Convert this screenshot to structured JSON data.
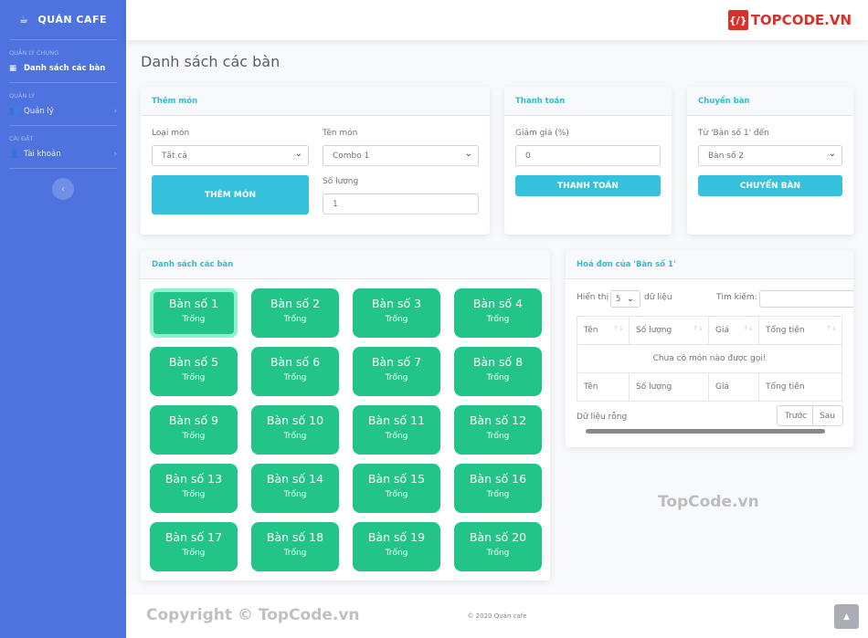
{
  "sidebar": {
    "brand": "QUÁN CAFE",
    "sections": [
      {
        "heading": "QUẢN LÝ CHUNG",
        "item": "Danh sách các bàn"
      },
      {
        "heading": "QUẢN LÝ",
        "item": "Quản lý"
      },
      {
        "heading": "CÀI ĐẶT",
        "item": "Tài khoản"
      }
    ]
  },
  "topbar": {
    "logo": "TOPCODE.VN"
  },
  "page_title": "Danh sách các bàn",
  "add_item": {
    "title": "Thêm món",
    "type_label": "Loại món",
    "type_value": "Tất cả",
    "name_label": "Tên món",
    "name_value": "Combo 1",
    "qty_label": "Số lượng",
    "qty_value": "1",
    "button": "THÊM MÓN"
  },
  "payment": {
    "title": "Thanh toán",
    "discount_label": "Giảm giá (%)",
    "discount_value": "0",
    "button": "THANH TOÁN"
  },
  "transfer": {
    "title": "Chuyển bàn",
    "label": "Từ 'Bàn số 1' đến",
    "value": "Bàn số 2",
    "button": "CHUYỂN BÀN"
  },
  "tables": {
    "title": "Danh sách các bàn",
    "selected": "Bàn số 1",
    "items": [
      {
        "name": "Bàn số 1",
        "status": "Trống"
      },
      {
        "name": "Bàn số 2",
        "status": "Trống"
      },
      {
        "name": "Bàn số 3",
        "status": "Trống"
      },
      {
        "name": "Bàn số 4",
        "status": "Trống"
      },
      {
        "name": "Bàn số 5",
        "status": "Trống"
      },
      {
        "name": "Bàn số 6",
        "status": "Trống"
      },
      {
        "name": "Bàn số 7",
        "status": "Trống"
      },
      {
        "name": "Bàn số 8",
        "status": "Trống"
      },
      {
        "name": "Bàn số 9",
        "status": "Trống"
      },
      {
        "name": "Bàn số 10",
        "status": "Trống"
      },
      {
        "name": "Bàn số 11",
        "status": "Trống"
      },
      {
        "name": "Bàn số 12",
        "status": "Trống"
      },
      {
        "name": "Bàn số 13",
        "status": "Trống"
      },
      {
        "name": "Bàn số 14",
        "status": "Trống"
      },
      {
        "name": "Bàn số 15",
        "status": "Trống"
      },
      {
        "name": "Bàn số 16",
        "status": "Trống"
      },
      {
        "name": "Bàn số 17",
        "status": "Trống"
      },
      {
        "name": "Bàn số 18",
        "status": "Trống"
      },
      {
        "name": "Bàn số 19",
        "status": "Trống"
      },
      {
        "name": "Bàn số 20",
        "status": "Trống"
      }
    ]
  },
  "bill": {
    "title": "Hoá đơn của 'Bàn số 1'",
    "show_label": "Hiển thị",
    "page_size": "5",
    "entries_label": "dữ liệu",
    "search_label": "Tìm kiếm:",
    "search_value": "",
    "columns": [
      "Tên",
      "Số lượng",
      "Giá",
      "Tổng tiền"
    ],
    "empty": "Chưa có món nào được gọi!",
    "info": "Dữ liệu rỗng",
    "prev": "Trước",
    "next": "Sau"
  },
  "footer": "© 2020 Quán cafe",
  "watermarks": [
    "TopCode.vn",
    "Copyright © TopCode.vn"
  ],
  "colors": {
    "sidebar": "#4e73df",
    "accent": "#36b9cc",
    "table_button": "#22c587"
  }
}
